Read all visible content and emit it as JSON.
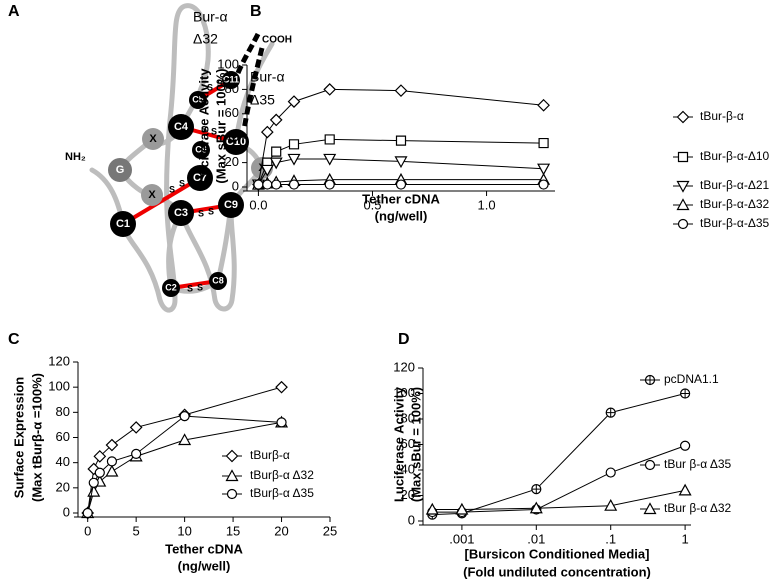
{
  "diagram": {
    "panel": "A",
    "labels": [
      "Bur-α",
      "Δ32",
      "COOH",
      "Bur-α",
      "Δ35",
      "NH₂"
    ],
    "nodes": [
      "C11",
      "C5",
      "C4",
      "C10",
      "C6",
      "X",
      "G",
      "C7",
      "X",
      "X",
      "C3",
      "C9",
      "C1",
      "C2",
      "C8"
    ],
    "bonds": [
      {
        "left": "S",
        "right": "S"
      },
      {
        "left": "S",
        "right": "S"
      },
      {
        "left": "S",
        "right": "S"
      },
      {
        "left": "S",
        "right": "S"
      },
      {
        "left": "S",
        "right": "S"
      }
    ]
  },
  "chart_data": [
    {
      "type": "line",
      "panel": "B",
      "ylabel": [
        "Luciferase Activity",
        "(Max sBur = 100%)"
      ],
      "xlabel": [
        "Tether cDNA",
        "(ng/well)"
      ],
      "x": [
        0,
        0.039,
        0.078,
        0.156,
        0.3125,
        0.625,
        1.25
      ],
      "xlim": [
        -0.05,
        1.3
      ],
      "xticks": [
        {
          "value": 0,
          "label": "0.0"
        },
        0.5,
        {
          "value": 1,
          "label": "1.0"
        }
      ],
      "ylim": [
        0,
        100
      ],
      "yticks": [
        0,
        20,
        40,
        60,
        80,
        100
      ],
      "series": [
        {
          "name": "tBur-β-α",
          "color": "#000000",
          "marker": "diamond",
          "values": [
            2,
            45,
            55,
            70,
            80,
            79,
            67
          ]
        },
        {
          "name": "tBur-β-α-Δ10",
          "color": "#000000",
          "marker": "square",
          "values": [
            2,
            20,
            29,
            35,
            39,
            38,
            36
          ]
        },
        {
          "name": "tBur-β-α-Δ21",
          "color": "#000000",
          "marker": "triangle-down",
          "values": [
            2,
            14,
            20,
            23,
            23,
            21,
            15
          ]
        },
        {
          "name": "tBur-β-α-Δ32",
          "color": "#000000",
          "marker": "triangle-up",
          "values": [
            2,
            3,
            4,
            5,
            6,
            6,
            6
          ]
        },
        {
          "name": "tBur-β-α-Δ35",
          "color": "#000000",
          "marker": "circle",
          "values": [
            2,
            2,
            2,
            2,
            2,
            2,
            2
          ]
        }
      ]
    },
    {
      "type": "line",
      "panel": "C",
      "ylabel": [
        "Surface Expression",
        "(Max tBurβ-α =100%)"
      ],
      "xlabel": [
        "Tether cDNA",
        "(ng/well)"
      ],
      "x": [
        0,
        0.625,
        1.25,
        2.5,
        5,
        10,
        20
      ],
      "xlim": [
        -1,
        25
      ],
      "xticks": [
        0,
        5,
        10,
        15,
        20,
        25
      ],
      "ylim": [
        0,
        120
      ],
      "yticks": [
        0,
        20,
        40,
        60,
        80,
        100,
        120
      ],
      "series": [
        {
          "name": "tBurβ-α",
          "color": "#000000",
          "marker": "diamond",
          "values": [
            0,
            35,
            45,
            54,
            68,
            78,
            100
          ]
        },
        {
          "name": "tBurβ-α Δ32",
          "color": "#000000",
          "marker": "triangle-up",
          "values": [
            0,
            17,
            25,
            33,
            45,
            58,
            72
          ]
        },
        {
          "name": "tBurβ-α Δ35",
          "color": "#000000",
          "marker": "circle",
          "values": [
            0,
            24,
            32,
            41,
            47,
            77,
            72
          ]
        }
      ]
    },
    {
      "type": "line",
      "panel": "D",
      "log_x": true,
      "ylabel": [
        "Luciferase Activity",
        "(Max sBur = 100%)"
      ],
      "xlabel": [
        "[Bursicon Conditioned Media]",
        "(Fold undiluted concentration)"
      ],
      "x": [
        0.0004,
        0.001,
        0.01,
        0.1,
        1
      ],
      "xlim": [
        0.0003,
        1.2
      ],
      "xticks": [
        {
          "value": 0.001,
          "label": ".001"
        },
        {
          "value": 0.01,
          "label": ".01"
        },
        {
          "value": 0.1,
          "label": ".1"
        },
        1
      ],
      "ylim": [
        0,
        120
      ],
      "yticks": [
        0,
        20,
        40,
        60,
        80,
        100,
        120
      ],
      "series": [
        {
          "name": "pcDNA1.1",
          "color": "#000000",
          "marker": "circle-plus",
          "values": [
            5,
            6,
            25,
            85,
            100
          ]
        },
        {
          "name": "tBur β-α Δ35",
          "color": "#000000",
          "marker": "circle",
          "values": [
            7,
            7,
            9,
            38,
            59
          ]
        },
        {
          "name": "tBur β-α Δ32",
          "color": "#000000",
          "marker": "triangle-up",
          "values": [
            9,
            9,
            10,
            12,
            24
          ]
        }
      ]
    }
  ]
}
